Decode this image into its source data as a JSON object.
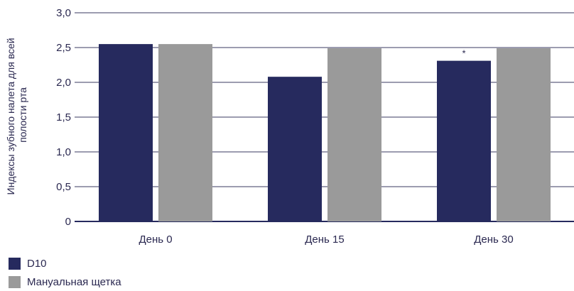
{
  "chart_data": {
    "type": "bar",
    "title": "",
    "xlabel": "",
    "ylabel_lines": [
      "Индексы зубного налета для всей",
      "полости рта"
    ],
    "ylim": [
      0,
      3.0
    ],
    "yticks": [
      0,
      0.5,
      1.0,
      1.5,
      2.0,
      2.5,
      3.0
    ],
    "ytick_labels": [
      "0",
      "0,5",
      "1,0",
      "1,5",
      "2,0",
      "2,5",
      "3,0"
    ],
    "categories": [
      "День 0",
      "День 15",
      "День 30"
    ],
    "series": [
      {
        "name": "D10",
        "color": "#262a5e",
        "values": [
          2.55,
          2.08,
          2.31
        ]
      },
      {
        "name": "Мануальная щетка",
        "color": "#9a9a9a",
        "values": [
          2.55,
          2.49,
          2.49
        ]
      }
    ],
    "annotations": [
      {
        "category_index": 2,
        "series_index": 0,
        "text": "*"
      }
    ],
    "grid": true,
    "legend_position": "bottom-left"
  }
}
